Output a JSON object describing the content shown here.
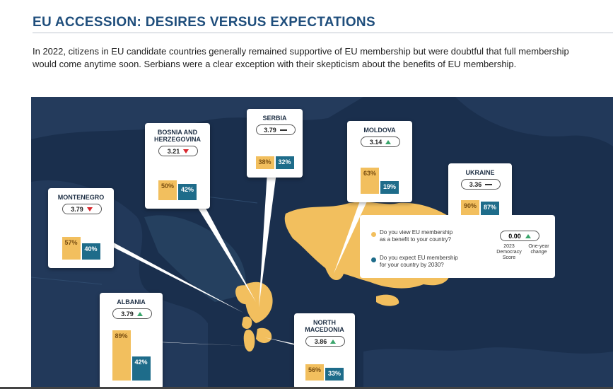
{
  "page": {
    "title": "EU ACCESSION: DESIRES VERSUS EXPECTATIONS",
    "intro": "In 2022, citizens in EU candidate countries generally remained supportive of EU membership but were doubtful that full membership would come anytime soon. Serbians were a clear exception with their skepticism about the benefits of EU membership."
  },
  "chart_data": {
    "type": "bar",
    "categories": [
      "Montenegro",
      "Bosnia and Herzegovina",
      "Serbia",
      "Moldova",
      "Ukraine",
      "Albania",
      "North Macedonia"
    ],
    "series": [
      {
        "name": "Do you view EU membership as a benefit to your country?",
        "values": [
          57,
          50,
          38,
          63,
          90,
          89,
          56
        ],
        "color": "#f2bf5e"
      },
      {
        "name": "Do you expect EU membership for your country by 2030?",
        "values": [
          40,
          42,
          32,
          19,
          87,
          42,
          33
        ],
        "color": "#1e6c8a"
      }
    ],
    "democracy_score_2023": [
      3.79,
      3.21,
      3.79,
      3.14,
      3.36,
      3.79,
      3.86
    ],
    "one_year_change": [
      "down",
      "down",
      "none",
      "up",
      "none",
      "up",
      "up"
    ],
    "unit": "%"
  },
  "countries": [
    {
      "name_lines": [
        "MONTENEGRO"
      ],
      "score": "3.79",
      "change": "down",
      "desire_label": "57%",
      "expect_label": "40%"
    },
    {
      "name_lines": [
        "BOSNIA AND",
        "HERZEGOVINA"
      ],
      "score": "3.21",
      "change": "down",
      "desire_label": "50%",
      "expect_label": "42%"
    },
    {
      "name_lines": [
        "SERBIA"
      ],
      "score": "3.79",
      "change": "none",
      "desire_label": "38%",
      "expect_label": "32%"
    },
    {
      "name_lines": [
        "MOLDOVA"
      ],
      "score": "3.14",
      "change": "up",
      "desire_label": "63%",
      "expect_label": "19%"
    },
    {
      "name_lines": [
        "UKRAINE"
      ],
      "score": "3.36",
      "change": "none",
      "desire_label": "90%",
      "expect_label": "87%"
    },
    {
      "name_lines": [
        "ALBANIA"
      ],
      "score": "3.79",
      "change": "up",
      "desire_label": "89%",
      "expect_label": "42%"
    },
    {
      "name_lines": [
        "NORTH",
        "MACEDONIA"
      ],
      "score": "3.86",
      "change": "up",
      "desire_label": "56%",
      "expect_label": "33%"
    }
  ],
  "legend": {
    "desire_text": [
      "Do you view EU membership",
      "as a benefit to your country?"
    ],
    "expect_text": [
      "Do you expect EU membership",
      "for your country by 2030?"
    ],
    "sample_score": "0.00",
    "score_caption": [
      "2023",
      "Democracy",
      "Score"
    ],
    "change_caption": [
      "One-year",
      "change"
    ]
  },
  "colors": {
    "desire": "#f2bf5e",
    "expect": "#1e6c8a",
    "increase": "#3aa56b",
    "decrease": "#d8262c",
    "map_background": "#1a2f4d",
    "title": "#1f4e7c"
  }
}
